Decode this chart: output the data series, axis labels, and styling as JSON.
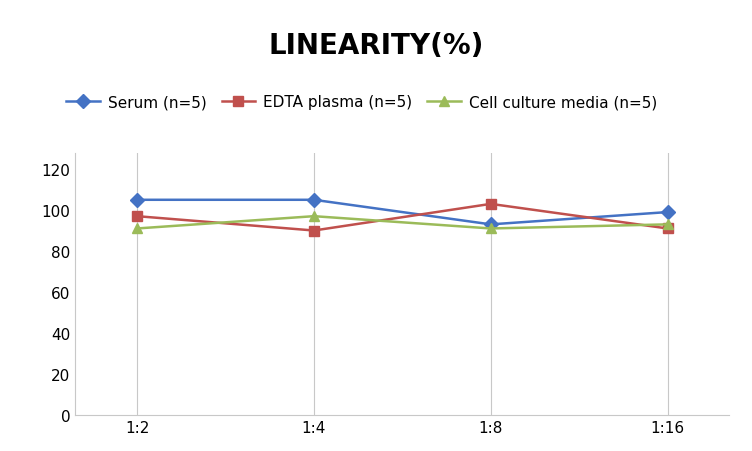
{
  "title": "LINEARITY(%)",
  "x_labels": [
    "1:2",
    "1:4",
    "1:8",
    "1:16"
  ],
  "x_positions": [
    0,
    1,
    2,
    3
  ],
  "series": [
    {
      "label": "Serum (n=5)",
      "values": [
        105,
        105,
        93,
        99
      ],
      "color": "#4472C4",
      "marker": "D",
      "markersize": 7,
      "linewidth": 1.8
    },
    {
      "label": "EDTA plasma (n=5)",
      "values": [
        97,
        90,
        103,
        91
      ],
      "color": "#C0504D",
      "marker": "s",
      "markersize": 7,
      "linewidth": 1.8
    },
    {
      "label": "Cell culture media (n=5)",
      "values": [
        91,
        97,
        91,
        93
      ],
      "color": "#9BBB59",
      "marker": "^",
      "markersize": 7,
      "linewidth": 1.8
    }
  ],
  "ylim": [
    0,
    128
  ],
  "yticks": [
    0,
    20,
    40,
    60,
    80,
    100,
    120
  ],
  "grid_color": "#C8C8C8",
  "background_color": "#FFFFFF",
  "title_fontsize": 20,
  "legend_fontsize": 11,
  "tick_fontsize": 11
}
